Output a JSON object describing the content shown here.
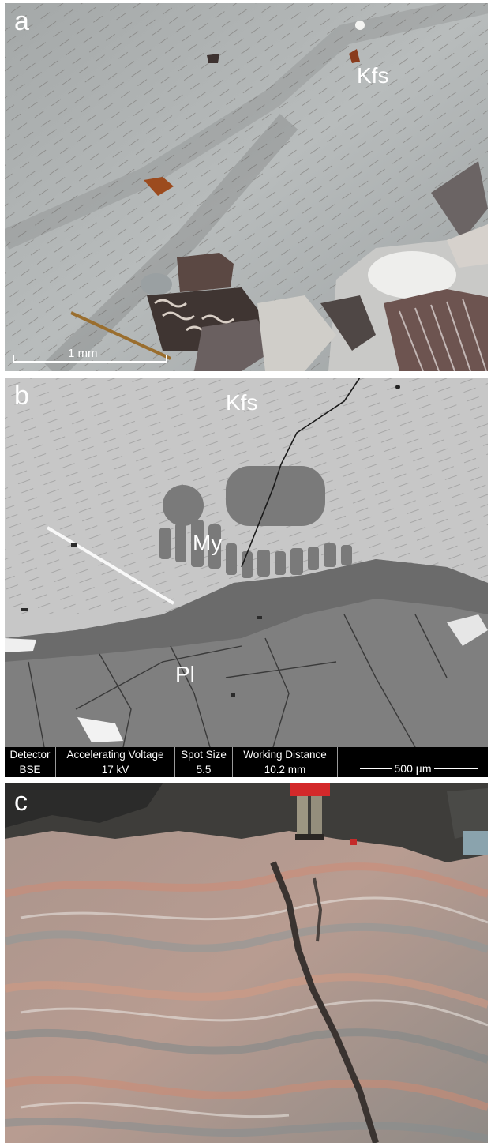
{
  "panels": [
    {
      "letter": "a",
      "labels": {
        "kfs": "Kfs"
      },
      "scale_bar": "1 mm"
    },
    {
      "letter": "b",
      "labels": {
        "kfs": "Kfs",
        "my": "My",
        "pl": "Pl"
      },
      "sem_info": {
        "headers": [
          "Detector",
          "Accelerating Voltage",
          "Spot Size",
          "Working Distance"
        ],
        "values": [
          "BSE",
          "17 kV",
          "5.5",
          "10.2 mm"
        ],
        "scale_bar": "500 µm"
      }
    },
    {
      "letter": "c"
    }
  ]
}
